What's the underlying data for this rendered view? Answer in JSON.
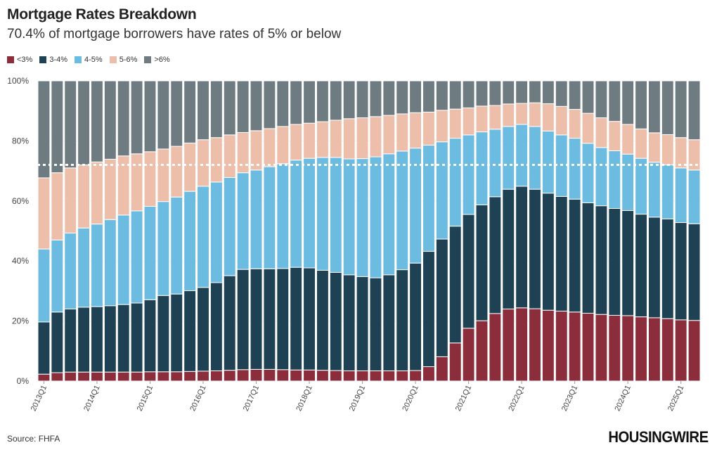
{
  "chart_data": {
    "type": "bar",
    "stacked": true,
    "title": "Mortgage Rates Breakdown",
    "subtitle": "70.4% of mortgage borrowers have rates of 5% or below",
    "source": "Source: FHFA",
    "logo": "HOUSINGWIRE",
    "ylim": [
      0,
      100
    ],
    "yticks": [
      "0%",
      "20%",
      "40%",
      "60%",
      "80%",
      "100%"
    ],
    "ytick_values": [
      0,
      20,
      40,
      60,
      80,
      100
    ],
    "grid": true,
    "legend_position": "top-left",
    "reference_line": 72,
    "categories": [
      "2013Q1",
      "2013Q2",
      "2013Q3",
      "2013Q4",
      "2014Q1",
      "2014Q2",
      "2014Q3",
      "2014Q4",
      "2015Q1",
      "2015Q2",
      "2015Q3",
      "2015Q4",
      "2016Q1",
      "2016Q2",
      "2016Q3",
      "2016Q4",
      "2017Q1",
      "2017Q2",
      "2017Q3",
      "2017Q4",
      "2018Q1",
      "2018Q2",
      "2018Q3",
      "2018Q4",
      "2019Q1",
      "2019Q2",
      "2019Q3",
      "2019Q4",
      "2020Q1",
      "2020Q2",
      "2020Q3",
      "2020Q4",
      "2021Q1",
      "2021Q2",
      "2021Q3",
      "2021Q4",
      "2022Q1",
      "2022Q2",
      "2022Q3",
      "2022Q4",
      "2023Q1",
      "2023Q2",
      "2023Q3",
      "2023Q4",
      "2024Q1",
      "2024Q2",
      "2024Q3",
      "2024Q4",
      "2025Q1",
      "2025Q2"
    ],
    "xtick_labels": [
      "2013Q1",
      "2014Q1",
      "2015Q1",
      "2016Q1",
      "2017Q1",
      "2018Q1",
      "2019Q1",
      "2020Q1",
      "2021Q1",
      "2022Q1",
      "2023Q1",
      "2024Q1",
      "2025Q1"
    ],
    "series": [
      {
        "name": "<3%",
        "color": "#8B2D3A",
        "values": [
          2.3,
          2.8,
          3.0,
          3.0,
          3.0,
          3.0,
          3.0,
          3.0,
          3.1,
          3.1,
          3.1,
          3.2,
          3.3,
          3.4,
          3.6,
          3.8,
          3.9,
          3.9,
          3.8,
          3.7,
          3.7,
          3.6,
          3.5,
          3.4,
          3.4,
          3.4,
          3.4,
          3.4,
          3.5,
          4.8,
          8.1,
          12.7,
          17.6,
          20.1,
          22.5,
          24.0,
          24.4,
          24.1,
          23.6,
          23.3,
          23.0,
          22.6,
          22.2,
          21.9,
          21.8,
          21.4,
          21.1,
          20.8,
          20.4,
          20.2
        ]
      },
      {
        "name": "3-4%",
        "color": "#1E4153",
        "values": [
          17.4,
          20.2,
          21.0,
          21.6,
          21.8,
          22.1,
          22.5,
          23.0,
          24.0,
          25.4,
          25.9,
          26.9,
          27.9,
          29.4,
          31.5,
          33.4,
          33.5,
          33.5,
          33.7,
          34.2,
          34.0,
          33.3,
          32.7,
          32.0,
          31.4,
          31.0,
          32.0,
          33.7,
          35.8,
          38.4,
          39.2,
          38.9,
          37.9,
          38.6,
          38.9,
          39.9,
          40.5,
          39.8,
          39.0,
          38.2,
          37.6,
          36.8,
          36.2,
          35.6,
          35.0,
          34.2,
          33.5,
          33.2,
          32.4,
          32.2
        ]
      },
      {
        "name": "4-5%",
        "color": "#6CBBE0",
        "values": [
          24.3,
          24.0,
          25.3,
          26.4,
          27.5,
          28.7,
          29.8,
          30.7,
          31.1,
          31.3,
          32.3,
          33.1,
          33.7,
          33.5,
          32.7,
          32.2,
          32.9,
          34.0,
          34.9,
          35.7,
          36.5,
          37.6,
          38.3,
          38.6,
          39.3,
          40.3,
          40.3,
          39.5,
          38.3,
          35.4,
          32.4,
          29.3,
          26.5,
          24.3,
          22.5,
          20.9,
          20.6,
          20.9,
          20.7,
          20.5,
          20.3,
          19.8,
          19.4,
          19.2,
          18.8,
          18.6,
          18.3,
          18.0,
          18.2,
          17.9
        ]
      },
      {
        "name": "5-6%",
        "color": "#EDBFAB",
        "values": [
          23.7,
          22.4,
          21.7,
          21.0,
          20.7,
          20.1,
          19.7,
          19.0,
          18.2,
          17.5,
          16.9,
          16.1,
          15.5,
          14.8,
          14.2,
          13.4,
          13.1,
          12.7,
          12.4,
          11.9,
          11.7,
          11.9,
          12.4,
          13.4,
          13.6,
          13.4,
          12.8,
          12.4,
          11.8,
          11.0,
          10.5,
          9.7,
          9.0,
          8.6,
          7.9,
          7.5,
          7.0,
          7.9,
          9.1,
          9.5,
          9.6,
          10.0,
          9.9,
          9.8,
          9.9,
          9.8,
          9.8,
          10.1,
          10.1,
          10.1
        ]
      },
      {
        "name": ">6%",
        "color": "#6E7C82",
        "values": [
          32.3,
          30.6,
          29.0,
          28.0,
          27.0,
          26.1,
          25.0,
          24.3,
          23.6,
          22.7,
          21.8,
          20.7,
          19.6,
          18.9,
          18.0,
          17.2,
          16.6,
          15.9,
          15.2,
          14.5,
          14.1,
          13.6,
          13.1,
          12.6,
          12.3,
          11.9,
          11.5,
          11.0,
          10.6,
          10.4,
          9.8,
          9.4,
          9.0,
          8.4,
          8.2,
          7.7,
          7.5,
          7.3,
          7.6,
          8.5,
          9.5,
          10.8,
          12.3,
          13.5,
          14.5,
          16.0,
          17.3,
          17.9,
          18.9,
          19.6
        ]
      }
    ]
  }
}
